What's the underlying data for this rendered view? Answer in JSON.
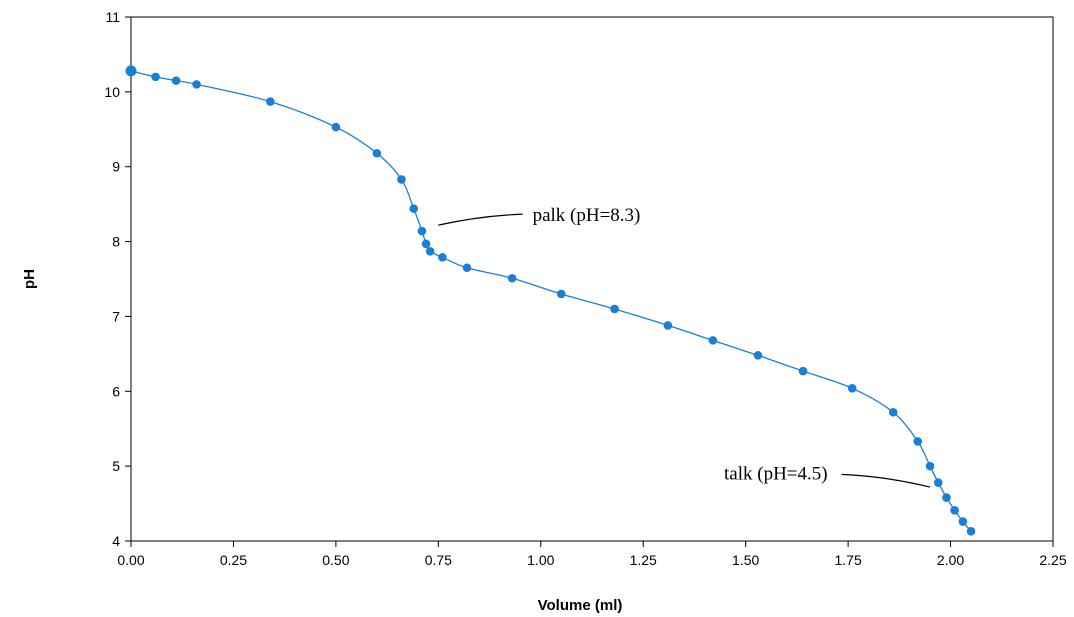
{
  "chart_data": {
    "type": "line",
    "title": "",
    "xlabel": "Volume (ml)",
    "ylabel": "pH",
    "xlim": [
      0,
      2.25
    ],
    "ylim": [
      4,
      11
    ],
    "x_ticks": [
      "0.00",
      "0.25",
      "0.50",
      "0.75",
      "1.00",
      "1.25",
      "1.50",
      "1.75",
      "2.00",
      "2.25"
    ],
    "y_ticks": [
      "4",
      "5",
      "6",
      "7",
      "8",
      "9",
      "10",
      "11"
    ],
    "grid": false,
    "legend": "none",
    "series": [
      {
        "color": "#1a7fd6",
        "points": [
          [
            0.0,
            10.28
          ],
          [
            0.06,
            10.2
          ],
          [
            0.11,
            10.15
          ],
          [
            0.16,
            10.1
          ],
          [
            0.34,
            9.87
          ],
          [
            0.5,
            9.53
          ],
          [
            0.6,
            9.18
          ],
          [
            0.66,
            8.83
          ],
          [
            0.69,
            8.44
          ],
          [
            0.71,
            8.14
          ],
          [
            0.72,
            7.97
          ],
          [
            0.73,
            7.87
          ],
          [
            0.76,
            7.79
          ],
          [
            0.82,
            7.65
          ],
          [
            0.93,
            7.51
          ],
          [
            1.05,
            7.3
          ],
          [
            1.18,
            7.1
          ],
          [
            1.31,
            6.88
          ],
          [
            1.42,
            6.68
          ],
          [
            1.53,
            6.48
          ],
          [
            1.64,
            6.27
          ],
          [
            1.76,
            6.04
          ],
          [
            1.86,
            5.72
          ],
          [
            1.92,
            5.33
          ],
          [
            1.95,
            5.0
          ],
          [
            1.97,
            4.78
          ],
          [
            1.99,
            4.58
          ],
          [
            2.01,
            4.41
          ],
          [
            2.03,
            4.26
          ],
          [
            2.05,
            4.13
          ]
        ]
      }
    ],
    "annotations": [
      {
        "text": "palk (pH=8.3)",
        "point": [
          0.75,
          8.22
        ],
        "text_at": [
          0.98,
          8.3
        ],
        "anchor": "start"
      },
      {
        "text": "talk (pH=4.5)",
        "point": [
          1.95,
          4.72
        ],
        "text_at": [
          1.7,
          4.85
        ],
        "anchor": "end"
      }
    ]
  }
}
